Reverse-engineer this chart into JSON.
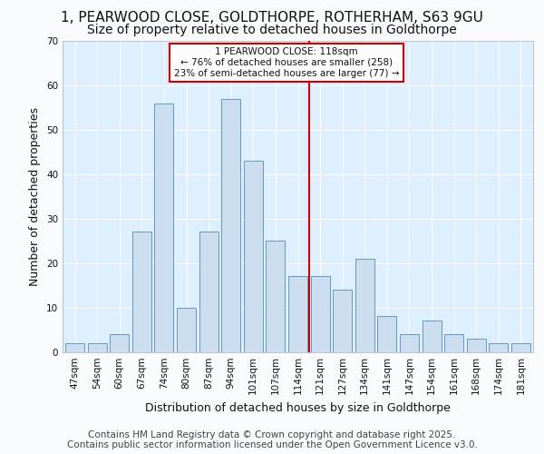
{
  "title_line1": "1, PEARWOOD CLOSE, GOLDTHORPE, ROTHERHAM, S63 9GU",
  "title_line2": "Size of property relative to detached houses in Goldthorpe",
  "xlabel": "Distribution of detached houses by size in Goldthorpe",
  "ylabel": "Number of detached properties",
  "footer_line1": "Contains HM Land Registry data © Crown copyright and database right 2025.",
  "footer_line2": "Contains public sector information licensed under the Open Government Licence v3.0.",
  "bar_labels": [
    "47sqm",
    "54sqm",
    "60sqm",
    "67sqm",
    "74sqm",
    "80sqm",
    "87sqm",
    "94sqm",
    "101sqm",
    "107sqm",
    "114sqm",
    "121sqm",
    "127sqm",
    "134sqm",
    "141sqm",
    "147sqm",
    "154sqm",
    "161sqm",
    "168sqm",
    "174sqm",
    "181sqm"
  ],
  "bar_heights": [
    2,
    2,
    4,
    27,
    56,
    10,
    27,
    57,
    43,
    25,
    17,
    17,
    14,
    21,
    8,
    4,
    7,
    4,
    3,
    2,
    2
  ],
  "bar_color": "#ccddf0",
  "bar_edgecolor": "#6699bb",
  "vline_index": 10.5,
  "vline_color": "#cc0000",
  "annotation_text": "1 PEARWOOD CLOSE: 118sqm\n← 76% of detached houses are smaller (258)\n23% of semi-detached houses are larger (77) →",
  "fig_bg_color": "#f8fafc",
  "plot_bg_color": "#ddeeff",
  "grid_color": "#ffffff",
  "ylim": [
    0,
    70
  ],
  "yticks": [
    0,
    10,
    20,
    30,
    40,
    50,
    60,
    70
  ],
  "title_fontsize": 11,
  "subtitle_fontsize": 10,
  "axis_label_fontsize": 9,
  "tick_fontsize": 7.5,
  "footer_fontsize": 7.5
}
